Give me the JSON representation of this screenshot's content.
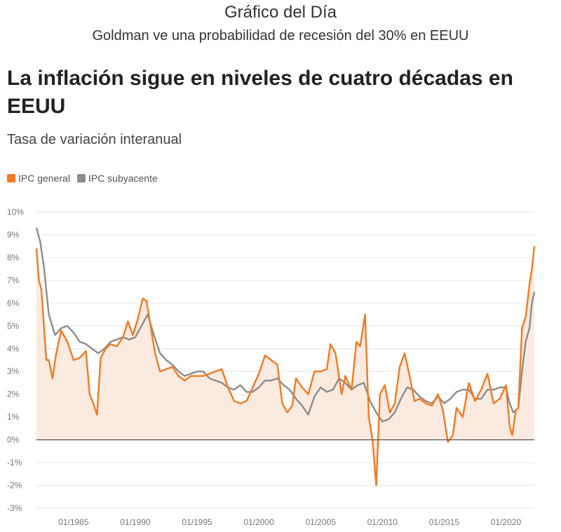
{
  "header": {
    "title": "Gráfico del Día",
    "subtitle": "Goldman ve una probabilidad de recesión del 30% en EEUU"
  },
  "chart_data": {
    "type": "line",
    "title": "La inflación sigue en niveles de cuatro décadas en EEUU",
    "subtitle": "Tasa de variación interanual",
    "xlabel": "",
    "ylabel": "",
    "ylim": [
      -3,
      10
    ],
    "xlim": [
      1982.0,
      2022.3
    ],
    "y_ticks": [
      "10%",
      "9%",
      "8%",
      "7%",
      "6%",
      "5%",
      "4%",
      "3%",
      "2%",
      "1%",
      "0%",
      "-1%",
      "-2%",
      "-3%"
    ],
    "x_ticks": [
      {
        "label": "01/1985",
        "value": 1985
      },
      {
        "label": "01/1990",
        "value": 1990
      },
      {
        "label": "01/1995",
        "value": 1995
      },
      {
        "label": "01/2000",
        "value": 2000
      },
      {
        "label": "01/2005",
        "value": 2005
      },
      {
        "label": "01/2010",
        "value": 2010
      },
      {
        "label": "01/2015",
        "value": 2015
      },
      {
        "label": "01/2020",
        "value": 2020
      }
    ],
    "colors": {
      "general": "#f47920",
      "subyacente": "#8c8c8c",
      "zero_line": "#555555",
      "grid": "#e6e6e6",
      "area": "#fbeadf"
    },
    "series": [
      {
        "name": "IPC general",
        "key": "general",
        "x": [
          1982.0,
          1982.2,
          1982.4,
          1982.6,
          1982.8,
          1983.0,
          1983.3,
          1983.6,
          1984.0,
          1984.5,
          1985.0,
          1985.5,
          1986.0,
          1986.3,
          1986.6,
          1986.9,
          1987.2,
          1987.6,
          1988.0,
          1988.5,
          1989.0,
          1989.4,
          1989.8,
          1990.2,
          1990.6,
          1990.9,
          1991.3,
          1991.6,
          1992.0,
          1992.5,
          1993.0,
          1993.5,
          1994.0,
          1994.5,
          1995.0,
          1995.5,
          1996.0,
          1996.5,
          1997.0,
          1997.5,
          1998.0,
          1998.5,
          1999.0,
          1999.5,
          2000.0,
          2000.5,
          2001.0,
          2001.5,
          2001.9,
          2002.3,
          2002.7,
          2003.0,
          2003.5,
          2004.0,
          2004.5,
          2005.0,
          2005.5,
          2005.8,
          2006.2,
          2006.7,
          2007.0,
          2007.5,
          2007.9,
          2008.2,
          2008.6,
          2008.9,
          2009.2,
          2009.5,
          2009.8,
          2010.2,
          2010.6,
          2011.0,
          2011.4,
          2011.8,
          2012.2,
          2012.6,
          2013.0,
          2013.5,
          2014.0,
          2014.5,
          2014.9,
          2015.3,
          2015.7,
          2016.0,
          2016.5,
          2017.0,
          2017.5,
          2018.0,
          2018.5,
          2019.0,
          2019.5,
          2020.0,
          2020.3,
          2020.5,
          2020.8,
          2021.0,
          2021.3,
          2021.6,
          2021.9,
          2022.1,
          2022.3
        ],
        "values": [
          8.4,
          7.0,
          6.6,
          5.0,
          3.5,
          3.5,
          2.7,
          3.8,
          4.8,
          4.3,
          3.5,
          3.6,
          3.9,
          2.0,
          1.6,
          1.1,
          3.6,
          4.0,
          4.2,
          4.1,
          4.5,
          5.2,
          4.6,
          5.3,
          6.2,
          6.1,
          4.8,
          3.8,
          3.0,
          3.1,
          3.2,
          2.8,
          2.6,
          2.8,
          2.8,
          2.8,
          2.9,
          3.0,
          3.1,
          2.3,
          1.7,
          1.6,
          1.7,
          2.3,
          2.9,
          3.7,
          3.5,
          3.3,
          1.6,
          1.2,
          1.5,
          2.7,
          2.3,
          2.0,
          3.0,
          3.0,
          3.1,
          4.2,
          3.8,
          2.0,
          2.8,
          2.2,
          4.3,
          4.1,
          5.5,
          1.0,
          0.0,
          -2.0,
          2.0,
          2.4,
          1.2,
          1.6,
          3.2,
          3.8,
          2.8,
          1.7,
          1.8,
          1.6,
          1.5,
          2.0,
          1.3,
          -0.1,
          0.2,
          1.4,
          1.0,
          2.5,
          1.7,
          2.2,
          2.9,
          1.6,
          1.8,
          2.4,
          0.6,
          0.2,
          1.3,
          1.4,
          4.9,
          5.4,
          6.8,
          7.5,
          8.5
        ]
      },
      {
        "name": "IPC subyacente",
        "key": "subyacente",
        "x": [
          1982.0,
          1982.3,
          1982.6,
          1983.0,
          1983.5,
          1984.0,
          1984.5,
          1985.0,
          1985.5,
          1986.0,
          1986.5,
          1987.0,
          1987.5,
          1988.0,
          1988.5,
          1989.0,
          1989.5,
          1990.0,
          1990.5,
          1991.0,
          1991.5,
          1992.0,
          1992.5,
          1993.0,
          1993.5,
          1994.0,
          1994.5,
          1995.0,
          1995.5,
          1996.0,
          1996.5,
          1997.0,
          1997.5,
          1998.0,
          1998.5,
          1999.0,
          1999.5,
          2000.0,
          2000.5,
          2001.0,
          2001.5,
          2002.0,
          2002.5,
          2003.0,
          2003.5,
          2004.0,
          2004.5,
          2005.0,
          2005.5,
          2006.0,
          2006.5,
          2007.0,
          2007.5,
          2008.0,
          2008.5,
          2009.0,
          2009.5,
          2010.0,
          2010.5,
          2011.0,
          2011.5,
          2012.0,
          2012.5,
          2013.0,
          2013.5,
          2014.0,
          2014.5,
          2015.0,
          2015.5,
          2016.0,
          2016.5,
          2017.0,
          2017.5,
          2018.0,
          2018.5,
          2019.0,
          2019.5,
          2020.0,
          2020.3,
          2020.6,
          2021.0,
          2021.3,
          2021.6,
          2021.9,
          2022.1,
          2022.3
        ],
        "values": [
          9.3,
          8.7,
          7.6,
          5.5,
          4.6,
          4.9,
          5.0,
          4.7,
          4.3,
          4.2,
          4.0,
          3.8,
          4.0,
          4.3,
          4.4,
          4.5,
          4.4,
          4.5,
          5.0,
          5.5,
          4.6,
          3.8,
          3.5,
          3.3,
          3.0,
          2.8,
          2.9,
          3.0,
          3.0,
          2.7,
          2.6,
          2.5,
          2.3,
          2.2,
          2.4,
          2.1,
          2.1,
          2.3,
          2.6,
          2.6,
          2.7,
          2.4,
          2.2,
          1.8,
          1.5,
          1.1,
          1.9,
          2.3,
          2.1,
          2.2,
          2.7,
          2.5,
          2.2,
          2.4,
          2.5,
          1.7,
          1.2,
          0.8,
          0.9,
          1.2,
          1.8,
          2.3,
          2.2,
          1.9,
          1.7,
          1.6,
          1.9,
          1.6,
          1.8,
          2.1,
          2.2,
          2.2,
          1.8,
          1.8,
          2.2,
          2.2,
          2.3,
          2.3,
          1.6,
          1.2,
          1.4,
          3.0,
          4.3,
          4.9,
          6.0,
          6.5
        ]
      }
    ]
  }
}
